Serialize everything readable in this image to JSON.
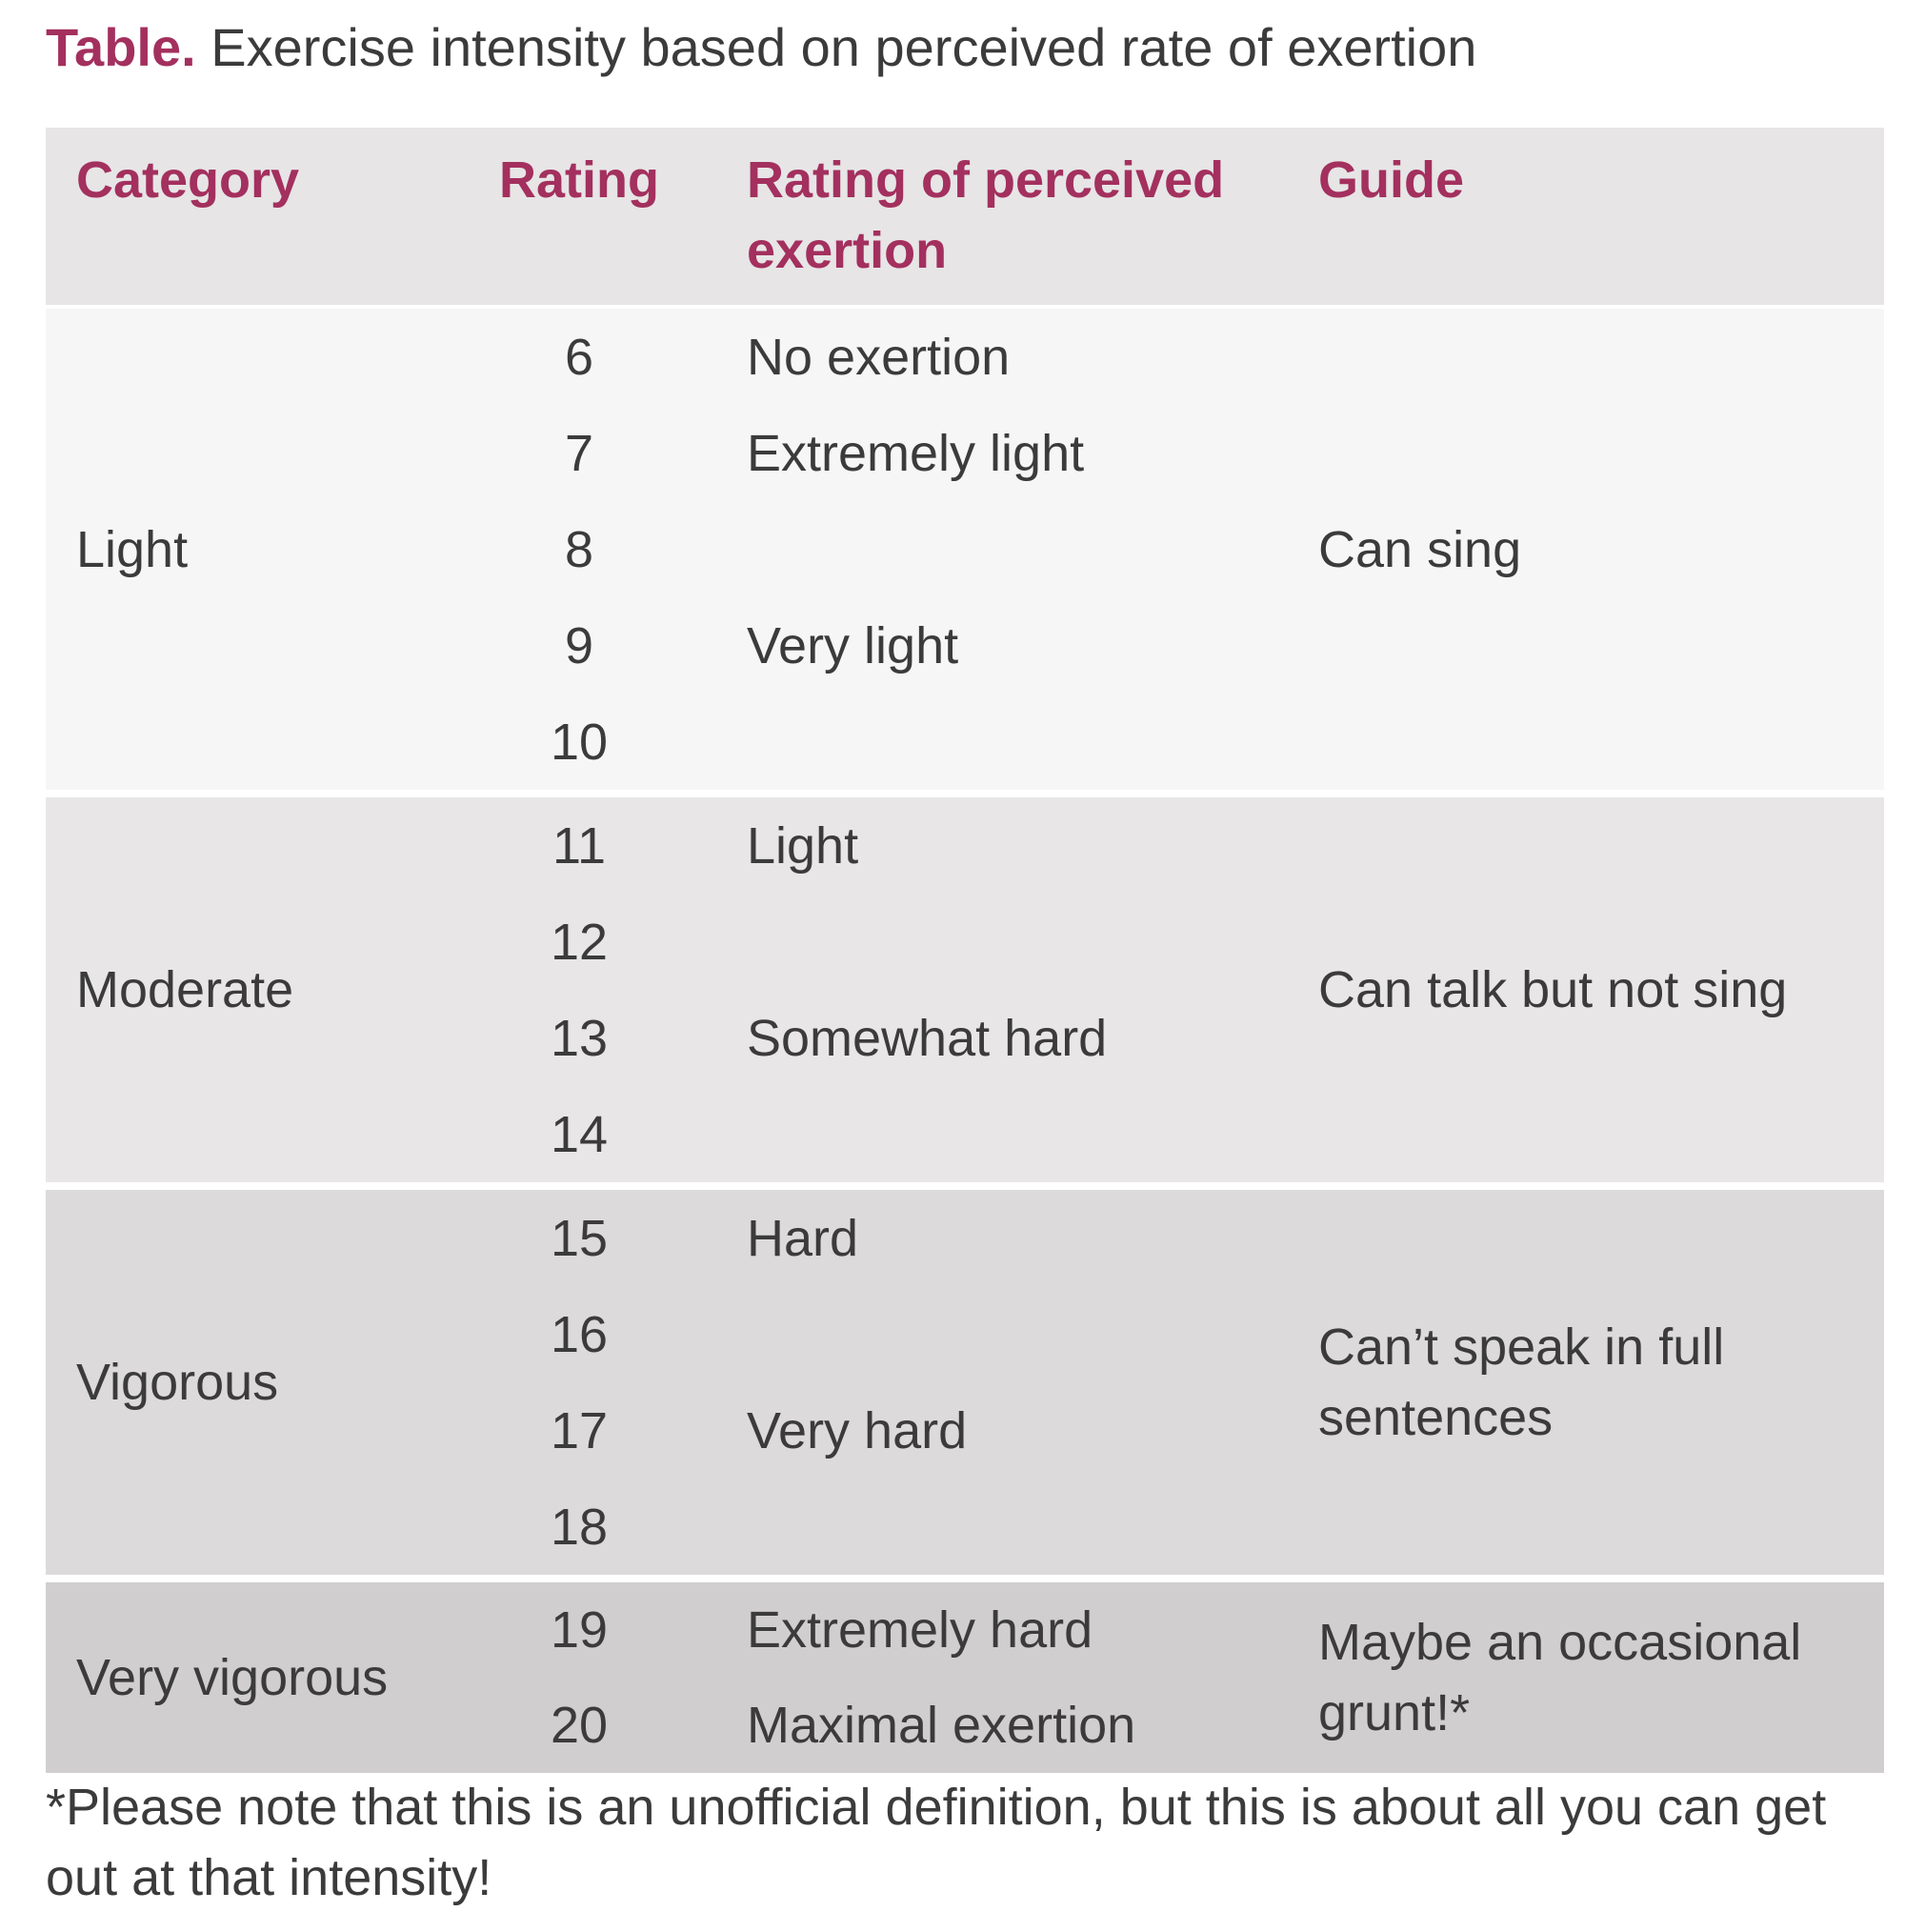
{
  "caption": {
    "lead": "Table.",
    "text": "Exercise intensity based on perceived rate of exertion"
  },
  "table": {
    "headers": {
      "category": "Category",
      "rating": "Rating",
      "rpe": "Rating of perceived exertion",
      "guide": "Guide"
    },
    "groups": [
      {
        "category": "Light",
        "guide": "Can sing",
        "rows": [
          {
            "rating": "6",
            "rpe": "No exertion"
          },
          {
            "rating": "7",
            "rpe": "Extremely light"
          },
          {
            "rating": "8",
            "rpe": ""
          },
          {
            "rating": "9",
            "rpe": "Very light"
          },
          {
            "rating": "10",
            "rpe": ""
          }
        ]
      },
      {
        "category": "Moderate",
        "guide": "Can talk but not sing",
        "rows": [
          {
            "rating": "11",
            "rpe": "Light"
          },
          {
            "rating": "12",
            "rpe": ""
          },
          {
            "rating": "13",
            "rpe": "Somewhat hard"
          },
          {
            "rating": "14",
            "rpe": ""
          }
        ]
      },
      {
        "category": "Vigorous",
        "guide": "Can’t speak in full sentences",
        "rows": [
          {
            "rating": "15",
            "rpe": "Hard"
          },
          {
            "rating": "16",
            "rpe": ""
          },
          {
            "rating": "17",
            "rpe": "Very hard"
          },
          {
            "rating": "18",
            "rpe": ""
          }
        ]
      },
      {
        "category": "Very vigorous",
        "guide": "Maybe an occasional grunt!*",
        "rows": [
          {
            "rating": "19",
            "rpe": "Extremely hard"
          },
          {
            "rating": "20",
            "rpe": "Maximal exertion"
          }
        ]
      }
    ]
  },
  "footnote": "*Please note that this is an unofficial definition, but this is about all you can get out at that intensity!",
  "colors": {
    "accent": "#a3305e",
    "text": "#3b3b3b",
    "header_bg": "#e7e5e6"
  }
}
